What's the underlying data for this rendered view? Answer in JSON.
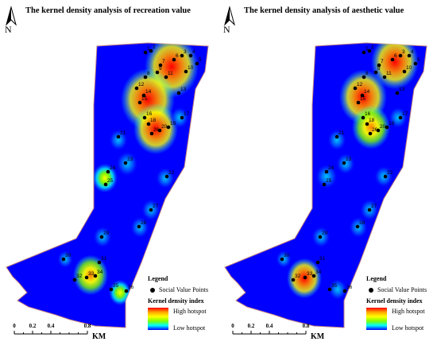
{
  "panels": [
    {
      "title": "The kernel density  analysis of recreation value",
      "north": "N",
      "legend": {
        "title": "Legend",
        "points_label": "Social Value Points",
        "ramp_title": "Kernel density index",
        "high": "High hotspot",
        "low": "Low hotspot"
      },
      "scale": {
        "ticks": [
          "0",
          "0.2",
          "0.4",
          "0.8"
        ],
        "unit": "KM"
      }
    },
    {
      "title": "The kernel density  analysis of aesthetic value",
      "north": "N",
      "legend": {
        "title": "Legend",
        "points_label": "Social Value Points",
        "ramp_title": "Kernel density index",
        "high": "High hotspot",
        "low": "Low hotspot"
      },
      "scale": {
        "ticks": [
          "0",
          "0.2",
          "0.4",
          "0.8"
        ],
        "unit": "KM"
      }
    }
  ],
  "points": [
    {
      "id": "1"
    },
    {
      "id": "2"
    },
    {
      "id": "3"
    },
    {
      "id": "4"
    },
    {
      "id": "5"
    },
    {
      "id": "6"
    },
    {
      "id": "7"
    },
    {
      "id": "8"
    },
    {
      "id": "9"
    },
    {
      "id": "10"
    },
    {
      "id": "11"
    },
    {
      "id": "12"
    },
    {
      "id": "13"
    },
    {
      "id": "14"
    },
    {
      "id": "15"
    },
    {
      "id": "16"
    },
    {
      "id": "17"
    },
    {
      "id": "18"
    },
    {
      "id": "19"
    },
    {
      "id": "20"
    },
    {
      "id": "21"
    },
    {
      "id": "22"
    },
    {
      "id": "23"
    },
    {
      "id": "24"
    },
    {
      "id": "25"
    },
    {
      "id": "26"
    },
    {
      "id": "27"
    },
    {
      "id": "28"
    },
    {
      "id": "29"
    },
    {
      "id": "30"
    },
    {
      "id": "31"
    },
    {
      "id": "32"
    },
    {
      "id": "33"
    },
    {
      "id": "34"
    },
    {
      "id": "35"
    },
    {
      "id": "36"
    }
  ],
  "colors": {
    "background": "#0000ff",
    "low": "#00ffff",
    "mid": "#ffff00",
    "high": "#ff0000"
  }
}
